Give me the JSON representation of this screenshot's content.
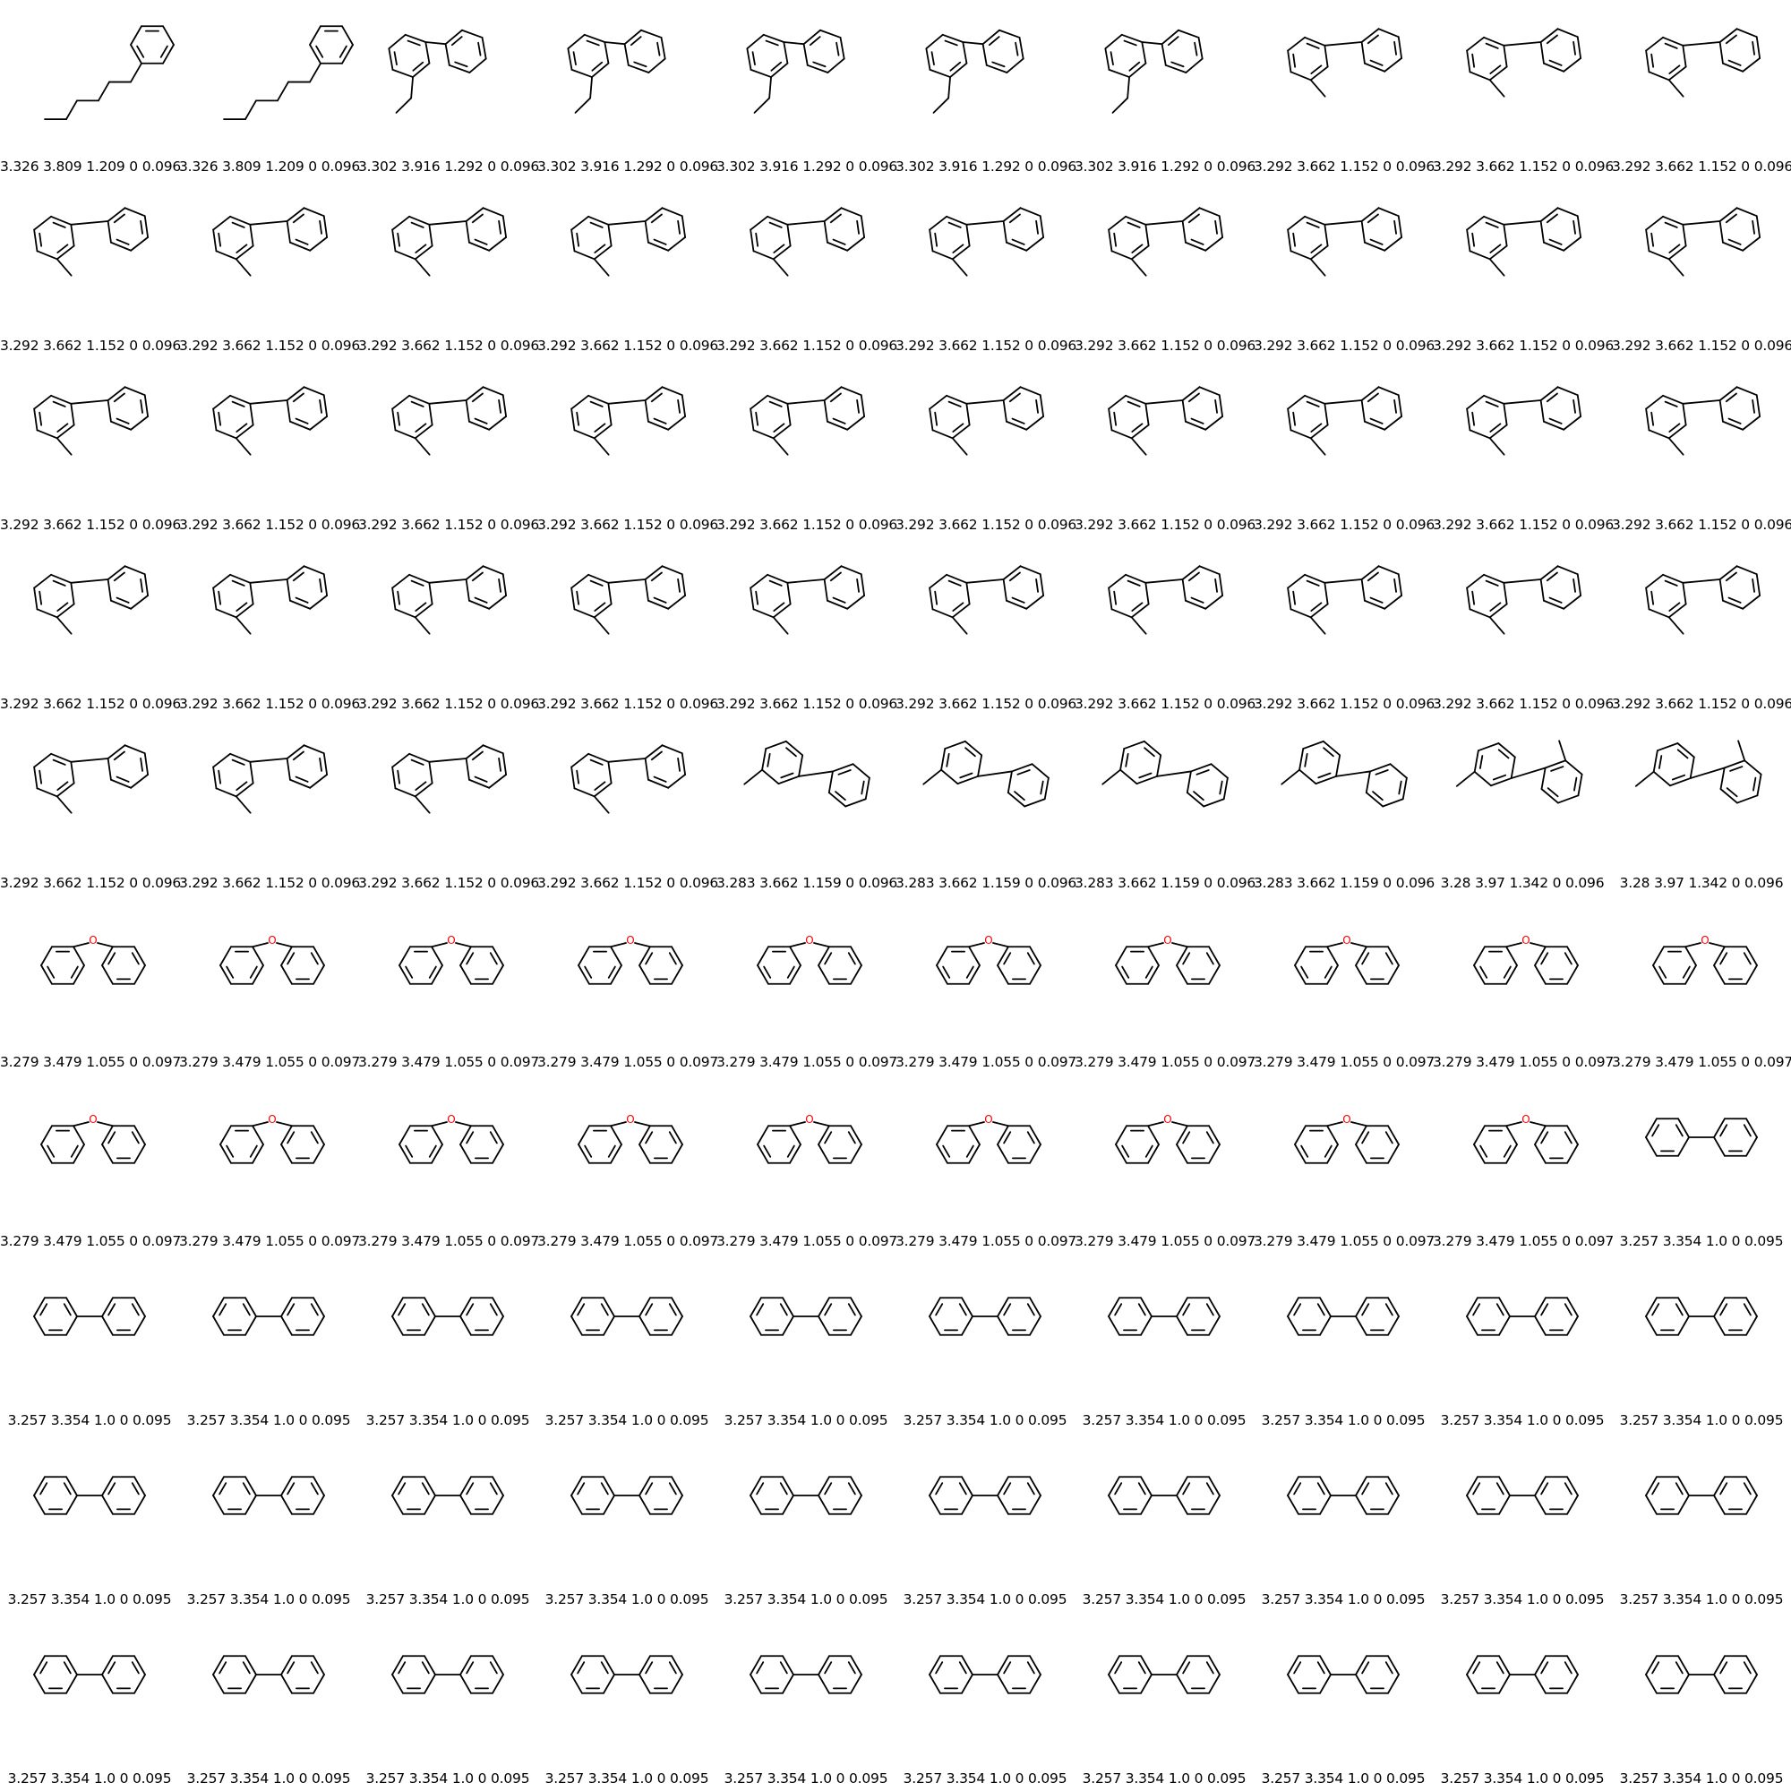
{
  "colors": {
    "bond": "#000000",
    "oxygen": "#ff0000",
    "background": "#ffffff"
  },
  "atom_labels": {
    "oxygen": "O"
  },
  "molecules": [
    {
      "type": "hexylbenzene",
      "label": "3.326 3.809 1.209 0 0.096"
    },
    {
      "type": "hexylbenzene",
      "label": "3.326 3.809 1.209 0 0.096"
    },
    {
      "type": "ethylbiphenyl",
      "label": "3.302 3.916 1.292 0 0.096"
    },
    {
      "type": "ethylbiphenyl",
      "label": "3.302 3.916 1.292 0 0.096"
    },
    {
      "type": "ethylbiphenyl",
      "label": "3.302 3.916 1.292 0 0.096"
    },
    {
      "type": "ethylbiphenyl",
      "label": "3.302 3.916 1.292 0 0.096"
    },
    {
      "type": "ethylbiphenyl",
      "label": "3.302 3.916 1.292 0 0.096"
    },
    {
      "type": "o-methylbiphenyl",
      "label": "3.292 3.662 1.152 0 0.096"
    },
    {
      "type": "o-methylbiphenyl",
      "label": "3.292 3.662 1.152 0 0.096"
    },
    {
      "type": "o-methylbiphenyl",
      "label": "3.292 3.662 1.152 0 0.096"
    },
    {
      "type": "o-methylbiphenyl",
      "label": "3.292 3.662 1.152 0 0.096"
    },
    {
      "type": "o-methylbiphenyl",
      "label": "3.292 3.662 1.152 0 0.096"
    },
    {
      "type": "o-methylbiphenyl",
      "label": "3.292 3.662 1.152 0 0.096"
    },
    {
      "type": "o-methylbiphenyl",
      "label": "3.292 3.662 1.152 0 0.096"
    },
    {
      "type": "o-methylbiphenyl",
      "label": "3.292 3.662 1.152 0 0.096"
    },
    {
      "type": "o-methylbiphenyl",
      "label": "3.292 3.662 1.152 0 0.096"
    },
    {
      "type": "o-methylbiphenyl",
      "label": "3.292 3.662 1.152 0 0.096"
    },
    {
      "type": "o-methylbiphenyl",
      "label": "3.292 3.662 1.152 0 0.096"
    },
    {
      "type": "o-methylbiphenyl",
      "label": "3.292 3.662 1.152 0 0.096"
    },
    {
      "type": "o-methylbiphenyl",
      "label": "3.292 3.662 1.152 0 0.096"
    },
    {
      "type": "o-methylbiphenyl",
      "label": "3.292 3.662 1.152 0 0.096"
    },
    {
      "type": "o-methylbiphenyl",
      "label": "3.292 3.662 1.152 0 0.096"
    },
    {
      "type": "o-methylbiphenyl",
      "label": "3.292 3.662 1.152 0 0.096"
    },
    {
      "type": "o-methylbiphenyl",
      "label": "3.292 3.662 1.152 0 0.096"
    },
    {
      "type": "o-methylbiphenyl",
      "label": "3.292 3.662 1.152 0 0.096"
    },
    {
      "type": "o-methylbiphenyl",
      "label": "3.292 3.662 1.152 0 0.096"
    },
    {
      "type": "o-methylbiphenyl",
      "label": "3.292 3.662 1.152 0 0.096"
    },
    {
      "type": "o-methylbiphenyl",
      "label": "3.292 3.662 1.152 0 0.096"
    },
    {
      "type": "o-methylbiphenyl",
      "label": "3.292 3.662 1.152 0 0.096"
    },
    {
      "type": "o-methylbiphenyl",
      "label": "3.292 3.662 1.152 0 0.096"
    },
    {
      "type": "o-methylbiphenyl",
      "label": "3.292 3.662 1.152 0 0.096"
    },
    {
      "type": "o-methylbiphenyl",
      "label": "3.292 3.662 1.152 0 0.096"
    },
    {
      "type": "o-methylbiphenyl",
      "label": "3.292 3.662 1.152 0 0.096"
    },
    {
      "type": "o-methylbiphenyl",
      "label": "3.292 3.662 1.152 0 0.096"
    },
    {
      "type": "o-methylbiphenyl",
      "label": "3.292 3.662 1.152 0 0.096"
    },
    {
      "type": "o-methylbiphenyl",
      "label": "3.292 3.662 1.152 0 0.096"
    },
    {
      "type": "o-methylbiphenyl",
      "label": "3.292 3.662 1.152 0 0.096"
    },
    {
      "type": "o-methylbiphenyl",
      "label": "3.292 3.662 1.152 0 0.096"
    },
    {
      "type": "o-methylbiphenyl",
      "label": "3.292 3.662 1.152 0 0.096"
    },
    {
      "type": "o-methylbiphenyl",
      "label": "3.292 3.662 1.152 0 0.096"
    },
    {
      "type": "o-methylbiphenyl",
      "label": "3.292 3.662 1.152 0 0.096"
    },
    {
      "type": "o-methylbiphenyl",
      "label": "3.292 3.662 1.152 0 0.096"
    },
    {
      "type": "o-methylbiphenyl",
      "label": "3.292 3.662 1.152 0 0.096"
    },
    {
      "type": "o-methylbiphenyl",
      "label": "3.292 3.662 1.152 0 0.096"
    },
    {
      "type": "m-methylbiphenyl",
      "label": "3.283 3.662 1.159 0 0.096"
    },
    {
      "type": "m-methylbiphenyl",
      "label": "3.283 3.662 1.159 0 0.096"
    },
    {
      "type": "m-methylbiphenyl",
      "label": "3.283 3.662 1.159 0 0.096"
    },
    {
      "type": "m-methylbiphenyl",
      "label": "3.283 3.662 1.159 0 0.096"
    },
    {
      "type": "dimethylbiphenyl",
      "label": "3.28 3.97 1.342 0 0.096"
    },
    {
      "type": "dimethylbiphenyl",
      "label": "3.28 3.97 1.342 0 0.096"
    },
    {
      "type": "diphenylether",
      "label": "3.279 3.479 1.055 0 0.097"
    },
    {
      "type": "diphenylether",
      "label": "3.279 3.479 1.055 0 0.097"
    },
    {
      "type": "diphenylether",
      "label": "3.279 3.479 1.055 0 0.097"
    },
    {
      "type": "diphenylether",
      "label": "3.279 3.479 1.055 0 0.097"
    },
    {
      "type": "diphenylether",
      "label": "3.279 3.479 1.055 0 0.097"
    },
    {
      "type": "diphenylether",
      "label": "3.279 3.479 1.055 0 0.097"
    },
    {
      "type": "diphenylether",
      "label": "3.279 3.479 1.055 0 0.097"
    },
    {
      "type": "diphenylether",
      "label": "3.279 3.479 1.055 0 0.097"
    },
    {
      "type": "diphenylether",
      "label": "3.279 3.479 1.055 0 0.097"
    },
    {
      "type": "diphenylether",
      "label": "3.279 3.479 1.055 0 0.097"
    },
    {
      "type": "diphenylether",
      "label": "3.279 3.479 1.055 0 0.097"
    },
    {
      "type": "diphenylether",
      "label": "3.279 3.479 1.055 0 0.097"
    },
    {
      "type": "diphenylether",
      "label": "3.279 3.479 1.055 0 0.097"
    },
    {
      "type": "diphenylether",
      "label": "3.279 3.479 1.055 0 0.097"
    },
    {
      "type": "diphenylether",
      "label": "3.279 3.479 1.055 0 0.097"
    },
    {
      "type": "diphenylether",
      "label": "3.279 3.479 1.055 0 0.097"
    },
    {
      "type": "diphenylether",
      "label": "3.279 3.479 1.055 0 0.097"
    },
    {
      "type": "diphenylether",
      "label": "3.279 3.479 1.055 0 0.097"
    },
    {
      "type": "diphenylether",
      "label": "3.279 3.479 1.055 0 0.097"
    },
    {
      "type": "biphenyl",
      "label": "3.257 3.354 1.0 0 0.095"
    },
    {
      "type": "biphenyl",
      "label": "3.257 3.354 1.0 0 0.095"
    },
    {
      "type": "biphenyl",
      "label": "3.257 3.354 1.0 0 0.095"
    },
    {
      "type": "biphenyl",
      "label": "3.257 3.354 1.0 0 0.095"
    },
    {
      "type": "biphenyl",
      "label": "3.257 3.354 1.0 0 0.095"
    },
    {
      "type": "biphenyl",
      "label": "3.257 3.354 1.0 0 0.095"
    },
    {
      "type": "biphenyl",
      "label": "3.257 3.354 1.0 0 0.095"
    },
    {
      "type": "biphenyl",
      "label": "3.257 3.354 1.0 0 0.095"
    },
    {
      "type": "biphenyl",
      "label": "3.257 3.354 1.0 0 0.095"
    },
    {
      "type": "biphenyl",
      "label": "3.257 3.354 1.0 0 0.095"
    },
    {
      "type": "biphenyl",
      "label": "3.257 3.354 1.0 0 0.095"
    },
    {
      "type": "biphenyl",
      "label": "3.257 3.354 1.0 0 0.095"
    },
    {
      "type": "biphenyl",
      "label": "3.257 3.354 1.0 0 0.095"
    },
    {
      "type": "biphenyl",
      "label": "3.257 3.354 1.0 0 0.095"
    },
    {
      "type": "biphenyl",
      "label": "3.257 3.354 1.0 0 0.095"
    },
    {
      "type": "biphenyl",
      "label": "3.257 3.354 1.0 0 0.095"
    },
    {
      "type": "biphenyl",
      "label": "3.257 3.354 1.0 0 0.095"
    },
    {
      "type": "biphenyl",
      "label": "3.257 3.354 1.0 0 0.095"
    },
    {
      "type": "biphenyl",
      "label": "3.257 3.354 1.0 0 0.095"
    },
    {
      "type": "biphenyl",
      "label": "3.257 3.354 1.0 0 0.095"
    },
    {
      "type": "biphenyl",
      "label": "3.257 3.354 1.0 0 0.095"
    },
    {
      "type": "biphenyl",
      "label": "3.257 3.354 1.0 0 0.095"
    },
    {
      "type": "biphenyl",
      "label": "3.257 3.354 1.0 0 0.095"
    },
    {
      "type": "biphenyl",
      "label": "3.257 3.354 1.0 0 0.095"
    },
    {
      "type": "biphenyl",
      "label": "3.257 3.354 1.0 0 0.095"
    },
    {
      "type": "biphenyl",
      "label": "3.257 3.354 1.0 0 0.095"
    },
    {
      "type": "biphenyl",
      "label": "3.257 3.354 1.0 0 0.095"
    },
    {
      "type": "biphenyl",
      "label": "3.257 3.354 1.0 0 0.095"
    },
    {
      "type": "biphenyl",
      "label": "3.257 3.354 1.0 0 0.095"
    },
    {
      "type": "biphenyl",
      "label": "3.257 3.354 1.0 0 0.095"
    },
    {
      "type": "biphenyl",
      "label": "3.257 3.354 1.0 0 0.095"
    }
  ]
}
